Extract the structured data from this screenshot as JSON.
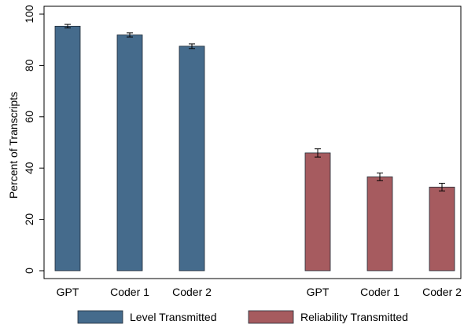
{
  "chart_data": {
    "type": "bar",
    "title": "",
    "xlabel": "",
    "ylabel": "Percent of Transcripts",
    "ylim": [
      0,
      100
    ],
    "yticks": [
      0,
      20,
      40,
      60,
      80,
      100
    ],
    "grid": false,
    "legend_position": "bottom",
    "groups": [
      {
        "series": "Level Transmitted",
        "color": "#456b8c",
        "categories": [
          "GPT",
          "Coder 1",
          "Coder 2"
        ],
        "values": [
          95.3,
          91.9,
          87.5
        ],
        "error_low": [
          94.6,
          91.1,
          86.6
        ],
        "error_high": [
          96.0,
          92.7,
          88.4
        ]
      },
      {
        "series": "Reliability Transmitted",
        "color": "#a65b5f",
        "categories": [
          "GPT",
          "Coder 1",
          "Coder 2"
        ],
        "values": [
          45.9,
          36.6,
          32.6
        ],
        "error_low": [
          44.3,
          35.1,
          31.1
        ],
        "error_high": [
          47.5,
          38.1,
          34.1
        ]
      }
    ],
    "legend": [
      {
        "label": "Level Transmitted",
        "color": "#456b8c"
      },
      {
        "label": "Reliability Transmitted",
        "color": "#a65b5f"
      }
    ]
  }
}
